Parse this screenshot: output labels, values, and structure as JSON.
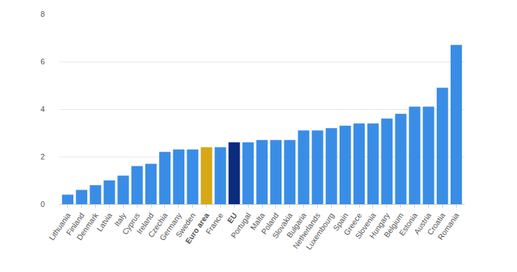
{
  "chart_data": {
    "type": "bar",
    "categories": [
      "Lithuania",
      "Finland",
      "Denmark",
      "Latvia",
      "Italy",
      "Cyprus",
      "Ireland",
      "Czechia",
      "Germany",
      "Sweden",
      "Euro area",
      "France",
      "EU",
      "Portugal",
      "Malta",
      "Poland",
      "Slovakia",
      "Bulgaria",
      "Netherlands",
      "Luxembourg",
      "Spain",
      "Greece",
      "Slovenia",
      "Hungary",
      "Belgium",
      "Estonia",
      "Austria",
      "Croatia",
      "Romania"
    ],
    "values": [
      0.4,
      0.6,
      0.8,
      1.0,
      1.2,
      1.6,
      1.7,
      2.2,
      2.3,
      2.3,
      2.4,
      2.4,
      2.6,
      2.6,
      2.7,
      2.7,
      2.7,
      3.1,
      3.1,
      3.2,
      3.3,
      3.4,
      3.4,
      3.6,
      3.8,
      4.1,
      4.1,
      4.9,
      6.7
    ],
    "colors": [
      "#3a8de6",
      "#3a8de6",
      "#3a8de6",
      "#3a8de6",
      "#3a8de6",
      "#3a8de6",
      "#3a8de6",
      "#3a8de6",
      "#3a8de6",
      "#3a8de6",
      "#d6a816",
      "#3a8de6",
      "#0b2b7c",
      "#3a8de6",
      "#3a8de6",
      "#3a8de6",
      "#3a8de6",
      "#3a8de6",
      "#3a8de6",
      "#3a8de6",
      "#3a8de6",
      "#3a8de6",
      "#3a8de6",
      "#3a8de6",
      "#3a8de6",
      "#3a8de6",
      "#3a8de6",
      "#3a8de6",
      "#3a8de6"
    ],
    "ylim": [
      0,
      8
    ],
    "yticks": [
      0,
      2,
      4,
      6,
      8
    ],
    "grid": true
  }
}
